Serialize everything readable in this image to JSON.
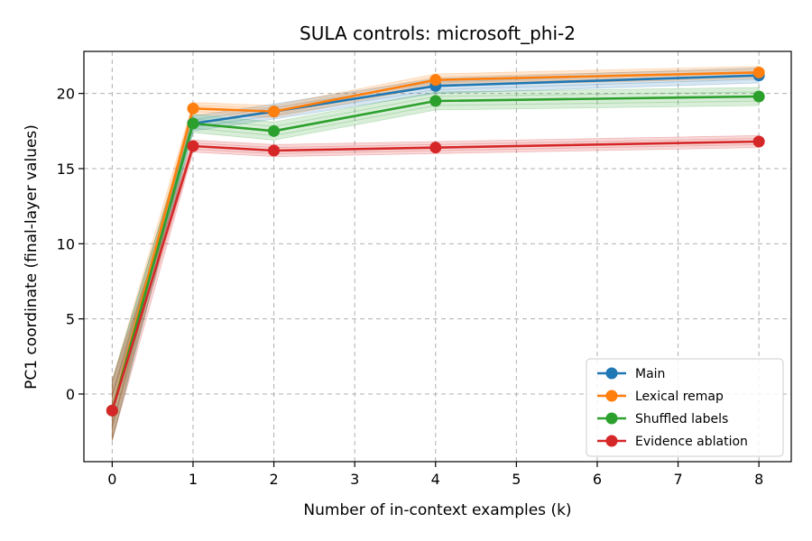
{
  "chart_data": {
    "type": "line",
    "title": "SULA controls: microsoft_phi-2",
    "xlabel": "Number of in-context examples (k)",
    "ylabel": "PC1 coordinate (final-layer values)",
    "xlim": [
      -0.35,
      8.4
    ],
    "ylim": [
      -4.5,
      22.8
    ],
    "xticks": [
      0,
      1,
      2,
      3,
      4,
      5,
      6,
      7,
      8
    ],
    "yticks": [
      0,
      5,
      10,
      15,
      20
    ],
    "grid": true,
    "legend_position": "lower-right",
    "x": [
      0,
      1,
      2,
      4,
      8
    ],
    "series": [
      {
        "name": "Main",
        "color": "#1f77b4",
        "values": [
          -1.1,
          18.0,
          18.8,
          20.5,
          21.2
        ],
        "band": 0.5
      },
      {
        "name": "Lexical remap",
        "color": "#ff7f0e",
        "values": [
          -1.1,
          19.0,
          18.8,
          20.9,
          21.4
        ],
        "band": 0.4
      },
      {
        "name": "Shuffled labels",
        "color": "#2ca02c",
        "values": [
          -1.1,
          18.0,
          17.5,
          19.5,
          19.8
        ],
        "band": 0.6
      },
      {
        "name": "Evidence ablation",
        "color": "#d62728",
        "values": [
          -1.1,
          16.5,
          16.2,
          16.4,
          16.8
        ],
        "band": 0.4
      }
    ]
  }
}
